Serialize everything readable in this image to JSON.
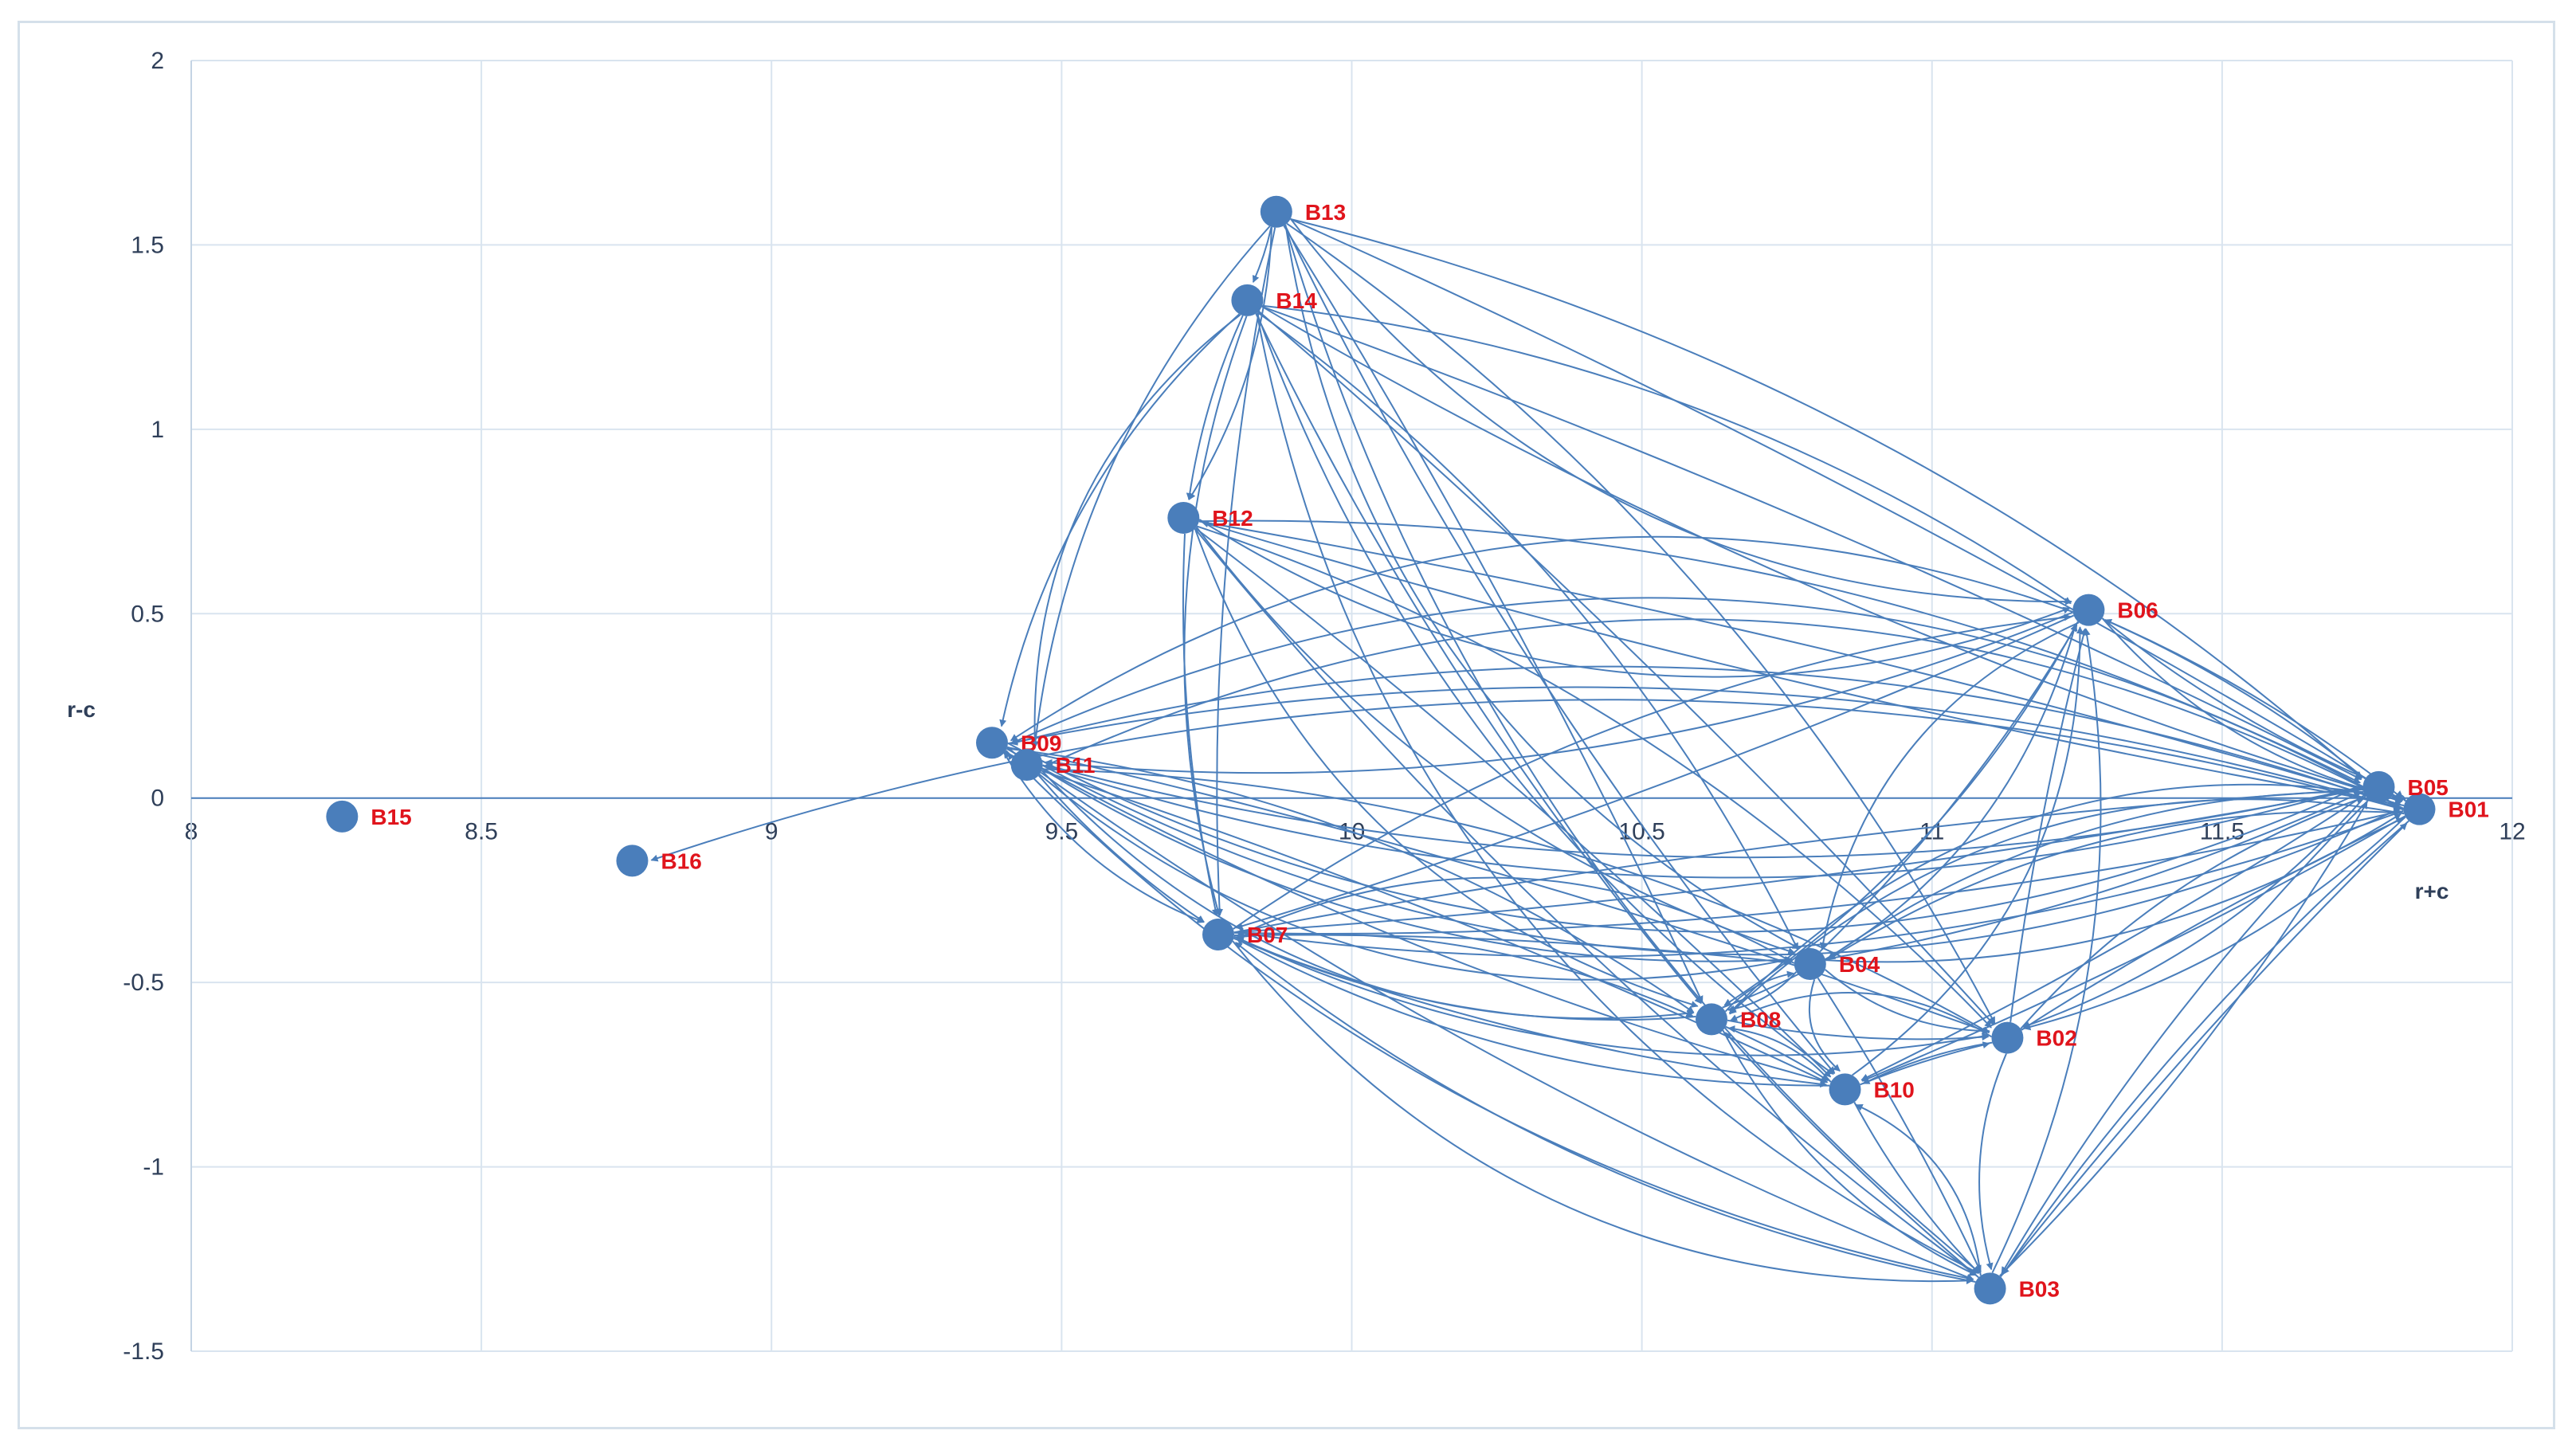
{
  "chart_data": {
    "type": "scatter",
    "title": "",
    "xlabel": "r+c",
    "ylabel": "r-c",
    "xlim": [
      8,
      12
    ],
    "ylim": [
      -1.5,
      2
    ],
    "x_ticks": [
      "8",
      "8.5",
      "9",
      "9.5",
      "10",
      "10.5",
      "11",
      "11.5",
      "12"
    ],
    "y_ticks": [
      "2",
      "1.5",
      "1",
      "0.5",
      "0",
      "-0.5",
      "-1",
      "-1.5"
    ],
    "grid": true,
    "legend": "none",
    "point_color": "#4a7ebb",
    "label_color": "#e0141c",
    "arrow_color": "#4a7ebb",
    "points": [
      {
        "name": "B01",
        "x": 11.84,
        "y": -0.03
      },
      {
        "name": "B02",
        "x": 11.13,
        "y": -0.65
      },
      {
        "name": "B03",
        "x": 11.1,
        "y": -1.33
      },
      {
        "name": "B04",
        "x": 10.79,
        "y": -0.45
      },
      {
        "name": "B05",
        "x": 11.77,
        "y": 0.03
      },
      {
        "name": "B06",
        "x": 11.27,
        "y": 0.51
      },
      {
        "name": "B07",
        "x": 9.77,
        "y": -0.37
      },
      {
        "name": "B08",
        "x": 10.62,
        "y": -0.6
      },
      {
        "name": "B09",
        "x": 9.38,
        "y": 0.15
      },
      {
        "name": "B10",
        "x": 10.85,
        "y": -0.79
      },
      {
        "name": "B11",
        "x": 9.44,
        "y": 0.09
      },
      {
        "name": "B12",
        "x": 9.71,
        "y": 0.76
      },
      {
        "name": "B13",
        "x": 9.87,
        "y": 1.59
      },
      {
        "name": "B14",
        "x": 9.82,
        "y": 1.35
      },
      {
        "name": "B15",
        "x": 8.26,
        "y": -0.05
      },
      {
        "name": "B16",
        "x": 8.76,
        "y": -0.17
      }
    ],
    "arrows": [
      [
        "B13",
        "B12"
      ],
      [
        "B13",
        "B14"
      ],
      [
        "B13",
        "B07"
      ],
      [
        "B13",
        "B11"
      ],
      [
        "B13",
        "B04"
      ],
      [
        "B13",
        "B02"
      ],
      [
        "B13",
        "B08"
      ],
      [
        "B13",
        "B10"
      ],
      [
        "B13",
        "B03"
      ],
      [
        "B13",
        "B06"
      ],
      [
        "B13",
        "B05"
      ],
      [
        "B13",
        "B01"
      ],
      [
        "B14",
        "B12"
      ],
      [
        "B14",
        "B07"
      ],
      [
        "B14",
        "B11"
      ],
      [
        "B14",
        "B04"
      ],
      [
        "B14",
        "B02"
      ],
      [
        "B14",
        "B08"
      ],
      [
        "B14",
        "B10"
      ],
      [
        "B14",
        "B03"
      ],
      [
        "B14",
        "B06"
      ],
      [
        "B14",
        "B05"
      ],
      [
        "B14",
        "B01"
      ],
      [
        "B14",
        "B09"
      ],
      [
        "B12",
        "B06"
      ],
      [
        "B12",
        "B05"
      ],
      [
        "B12",
        "B01"
      ],
      [
        "B12",
        "B07"
      ],
      [
        "B12",
        "B04"
      ],
      [
        "B12",
        "B08"
      ],
      [
        "B12",
        "B02"
      ],
      [
        "B12",
        "B10"
      ],
      [
        "B12",
        "B03"
      ],
      [
        "B01",
        "B09"
      ],
      [
        "B01",
        "B11"
      ],
      [
        "B01",
        "B07"
      ],
      [
        "B01",
        "B12"
      ],
      [
        "B01",
        "B06"
      ],
      [
        "B01",
        "B04"
      ],
      [
        "B01",
        "B08"
      ],
      [
        "B01",
        "B02"
      ],
      [
        "B01",
        "B10"
      ],
      [
        "B01",
        "B03"
      ],
      [
        "B01",
        "B05"
      ],
      [
        "B05",
        "B09"
      ],
      [
        "B05",
        "B11"
      ],
      [
        "B05",
        "B07"
      ],
      [
        "B05",
        "B06"
      ],
      [
        "B05",
        "B04"
      ],
      [
        "B05",
        "B08"
      ],
      [
        "B05",
        "B02"
      ],
      [
        "B05",
        "B10"
      ],
      [
        "B05",
        "B03"
      ],
      [
        "B05",
        "B01"
      ],
      [
        "B06",
        "B09"
      ],
      [
        "B06",
        "B11"
      ],
      [
        "B06",
        "B07"
      ],
      [
        "B06",
        "B05"
      ],
      [
        "B06",
        "B01"
      ],
      [
        "B06",
        "B04"
      ],
      [
        "B06",
        "B08"
      ],
      [
        "B02",
        "B06"
      ],
      [
        "B02",
        "B10"
      ],
      [
        "B02",
        "B03"
      ],
      [
        "B02",
        "B08"
      ],
      [
        "B02",
        "B05"
      ],
      [
        "B02",
        "B01"
      ],
      [
        "B04",
        "B06"
      ],
      [
        "B04",
        "B02"
      ],
      [
        "B04",
        "B10"
      ],
      [
        "B04",
        "B08"
      ],
      [
        "B04",
        "B03"
      ],
      [
        "B04",
        "B05"
      ],
      [
        "B04",
        "B01"
      ],
      [
        "B04",
        "B07"
      ],
      [
        "B08",
        "B04"
      ],
      [
        "B08",
        "B10"
      ],
      [
        "B08",
        "B02"
      ],
      [
        "B08",
        "B03"
      ],
      [
        "B08",
        "B06"
      ],
      [
        "B08",
        "B07"
      ],
      [
        "B10",
        "B02"
      ],
      [
        "B10",
        "B03"
      ],
      [
        "B10",
        "B08"
      ],
      [
        "B10",
        "B06"
      ],
      [
        "B10",
        "B07"
      ],
      [
        "B03",
        "B01"
      ],
      [
        "B03",
        "B05"
      ],
      [
        "B03",
        "B06"
      ],
      [
        "B03",
        "B10"
      ],
      [
        "B03",
        "B07"
      ],
      [
        "B03",
        "B08"
      ],
      [
        "B09",
        "B11"
      ],
      [
        "B09",
        "B07"
      ],
      [
        "B09",
        "B04"
      ],
      [
        "B09",
        "B08"
      ],
      [
        "B09",
        "B02"
      ],
      [
        "B09",
        "B10"
      ],
      [
        "B09",
        "B03"
      ],
      [
        "B09",
        "B05"
      ],
      [
        "B09",
        "B01"
      ],
      [
        "B11",
        "B09"
      ],
      [
        "B11",
        "B07"
      ],
      [
        "B11",
        "B04"
      ],
      [
        "B11",
        "B08"
      ],
      [
        "B11",
        "B02"
      ],
      [
        "B11",
        "B10"
      ],
      [
        "B11",
        "B03"
      ],
      [
        "B11",
        "B05"
      ],
      [
        "B11",
        "B01"
      ],
      [
        "B07",
        "B08"
      ],
      [
        "B07",
        "B04"
      ],
      [
        "B07",
        "B10"
      ],
      [
        "B07",
        "B02"
      ],
      [
        "B07",
        "B03"
      ],
      [
        "B07",
        "B06"
      ],
      [
        "B07",
        "B05"
      ],
      [
        "B07",
        "B01"
      ],
      [
        "B01",
        "B16"
      ]
    ]
  }
}
